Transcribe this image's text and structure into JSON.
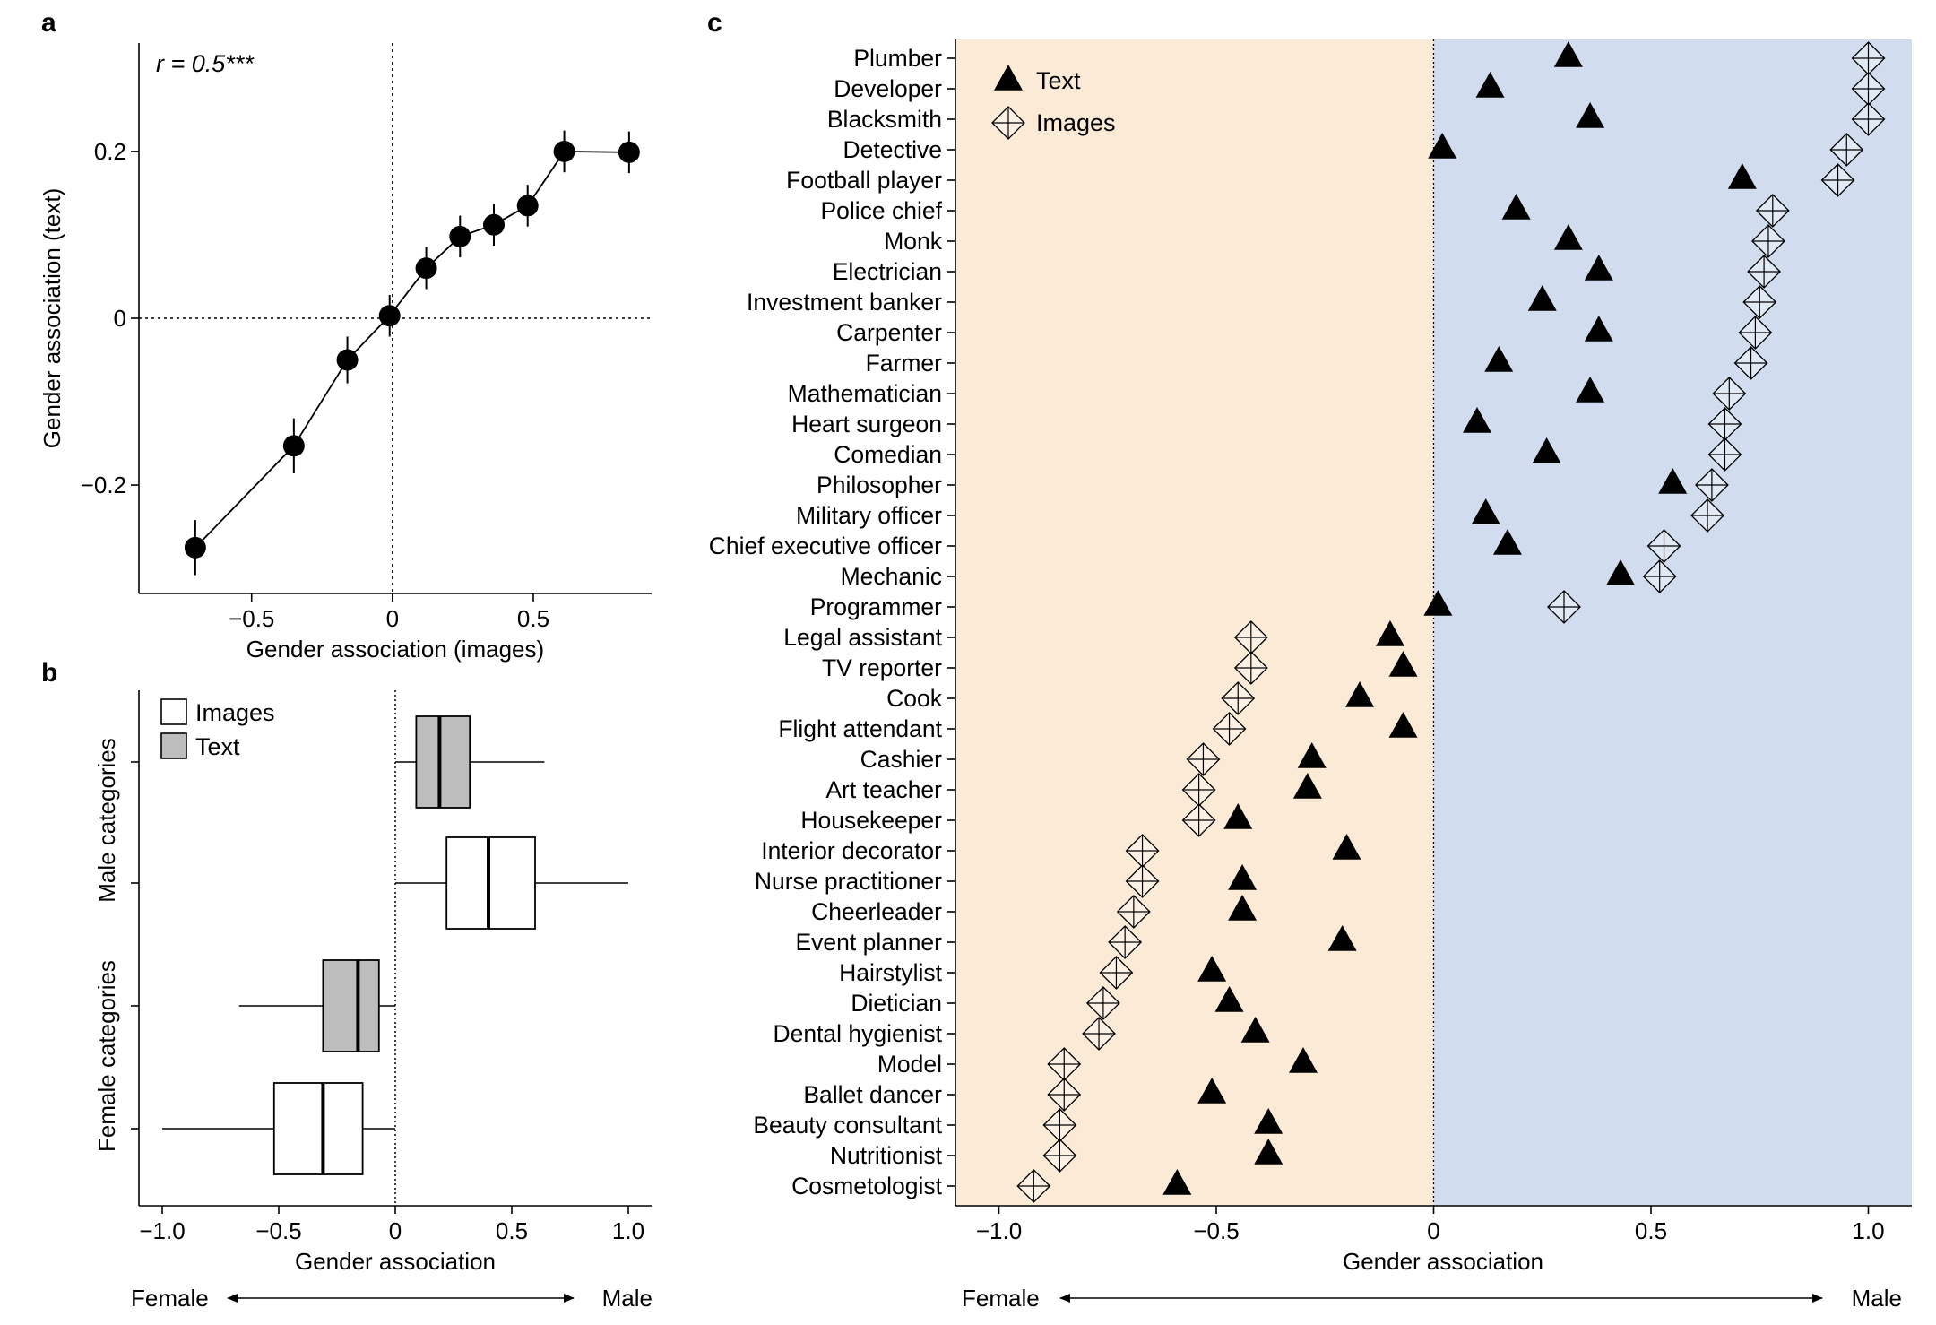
{
  "panel_labels": {
    "a": "a",
    "b": "b",
    "c": "c"
  },
  "direction_labels": {
    "female": "Female",
    "male": "Male"
  },
  "chart_data": [
    {
      "panel": "a",
      "type": "line",
      "annotation": "r = 0.5***",
      "xlabel": "Gender association (images)",
      "ylabel": "Gender association (text)",
      "xlim": [
        -0.9,
        0.92
      ],
      "ylim": [
        -0.33,
        0.33
      ],
      "xticks": [
        -0.5,
        0,
        0.5
      ],
      "xtick_labels": [
        "−0.5",
        "0",
        "0.5"
      ],
      "yticks": [
        -0.2,
        0,
        0.2
      ],
      "ytick_labels": [
        "−0.2",
        "0",
        "0.2"
      ],
      "reference_lines": {
        "x": 0,
        "y": 0,
        "style": "dotted"
      },
      "points": [
        {
          "x": -0.7,
          "y": -0.275,
          "err": 0.033
        },
        {
          "x": -0.35,
          "y": -0.153,
          "err": 0.033
        },
        {
          "x": -0.16,
          "y": -0.05,
          "err": 0.028
        },
        {
          "x": -0.01,
          "y": 0.003,
          "err": 0.025
        },
        {
          "x": 0.12,
          "y": 0.06,
          "err": 0.025
        },
        {
          "x": 0.24,
          "y": 0.098,
          "err": 0.025
        },
        {
          "x": 0.36,
          "y": 0.112,
          "err": 0.025
        },
        {
          "x": 0.48,
          "y": 0.135,
          "err": 0.025
        },
        {
          "x": 0.61,
          "y": 0.2,
          "err": 0.025
        },
        {
          "x": 0.84,
          "y": 0.199,
          "err": 0.025
        }
      ]
    },
    {
      "panel": "b",
      "type": "box",
      "xlabel": "Gender association",
      "xlim": [
        -1.1,
        1.1
      ],
      "xticks": [
        -1,
        -0.5,
        0,
        0.5,
        1
      ],
      "xtick_labels": [
        "−1.0",
        "−0.5",
        "0",
        "0.5",
        "1.0"
      ],
      "reference_lines": {
        "x": 0,
        "style": "dotted"
      },
      "group_labels": [
        "Male categories",
        "Female categories"
      ],
      "legend": {
        "items": [
          {
            "label": "Images",
            "color": "#ffffff"
          },
          {
            "label": "Text",
            "color": "#bdbdbd"
          }
        ],
        "position": "top-left"
      },
      "boxes": [
        {
          "group": "Male categories",
          "kind": "Text",
          "whisker_low": 0,
          "q1": 0.09,
          "median": 0.19,
          "q3": 0.32,
          "whisker_high": 0.64
        },
        {
          "group": "Male categories",
          "kind": "Images",
          "whisker_low": 0,
          "q1": 0.22,
          "median": 0.4,
          "q3": 0.6,
          "whisker_high": 1.0
        },
        {
          "group": "Female categories",
          "kind": "Text",
          "whisker_low": -0.67,
          "q1": -0.31,
          "median": -0.16,
          "q3": -0.07,
          "whisker_high": 0
        },
        {
          "group": "Female categories",
          "kind": "Images",
          "whisker_low": -1.0,
          "q1": -0.52,
          "median": -0.31,
          "q3": -0.14,
          "whisker_high": 0
        }
      ]
    },
    {
      "panel": "c",
      "type": "scatter",
      "xlabel": "Gender association",
      "xlim": [
        -1.1,
        1.1
      ],
      "xticks": [
        -1,
        -0.5,
        0,
        0.5,
        1
      ],
      "xtick_labels": [
        "−1.0",
        "−0.5",
        "0",
        "0.5",
        "1.0"
      ],
      "background": {
        "female": "#fbead6",
        "male": "#d1ddef"
      },
      "legend": {
        "items": [
          {
            "label": "Text",
            "marker": "triangle"
          },
          {
            "label": "Images",
            "marker": "diamond"
          }
        ],
        "position": "top-left"
      },
      "occupations": [
        "Plumber",
        "Developer",
        "Blacksmith",
        "Detective",
        "Football player",
        "Police chief",
        "Monk",
        "Electrician",
        "Investment banker",
        "Carpenter",
        "Farmer",
        "Mathematician",
        "Heart surgeon",
        "Comedian",
        "Philosopher",
        "Military officer",
        "Chief executive officer",
        "Mechanic",
        "Programmer",
        "Legal assistant",
        "TV reporter",
        "Cook",
        "Flight attendant",
        "Cashier",
        "Art teacher",
        "Housekeeper",
        "Interior decorator",
        "Nurse practitioner",
        "Cheerleader",
        "Event planner",
        "Hairstylist",
        "Dietician",
        "Dental hygienist",
        "Model",
        "Ballet dancer",
        "Beauty consultant",
        "Nutritionist",
        "Cosmetologist"
      ],
      "series": [
        {
          "name": "Text",
          "values": [
            0.31,
            0.13,
            0.36,
            0.02,
            0.71,
            0.19,
            0.31,
            0.38,
            0.25,
            0.38,
            0.15,
            0.36,
            0.1,
            0.26,
            0.55,
            0.12,
            0.17,
            0.43,
            0.01,
            -0.1,
            -0.07,
            -0.17,
            -0.07,
            -0.28,
            -0.29,
            -0.45,
            -0.2,
            -0.44,
            -0.44,
            -0.21,
            -0.51,
            -0.47,
            -0.41,
            -0.3,
            -0.51,
            -0.38,
            -0.38,
            -0.59
          ]
        },
        {
          "name": "Images",
          "values": [
            1.0,
            1.0,
            1.0,
            0.95,
            0.93,
            0.78,
            0.77,
            0.76,
            0.75,
            0.74,
            0.73,
            0.68,
            0.67,
            0.67,
            0.64,
            0.63,
            0.53,
            0.52,
            0.3,
            -0.42,
            -0.42,
            -0.45,
            -0.47,
            -0.53,
            -0.54,
            -0.54,
            -0.67,
            -0.67,
            -0.69,
            -0.71,
            -0.73,
            -0.76,
            -0.77,
            -0.85,
            -0.85,
            -0.86,
            -0.86,
            -0.92
          ]
        }
      ]
    }
  ]
}
